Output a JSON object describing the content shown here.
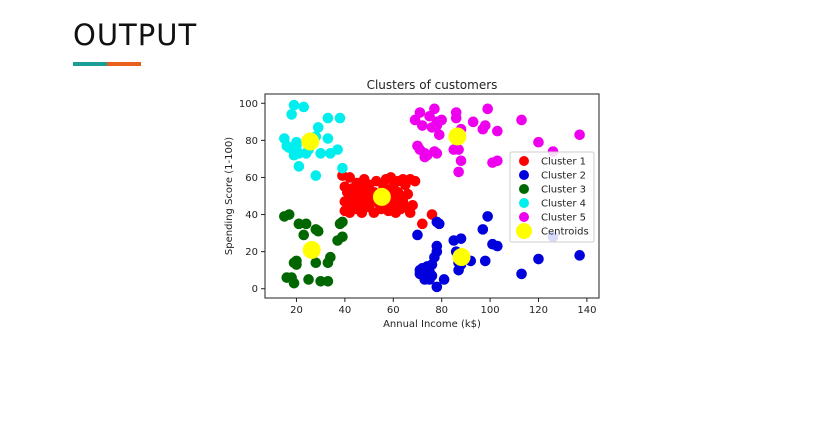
{
  "slide": {
    "title": "OUTPUT",
    "accent_colors": [
      "#1a9e96",
      "#e8601c"
    ]
  },
  "chart_data": {
    "type": "scatter",
    "title": "Clusters of customers",
    "xlabel": "Annual Income (k$)",
    "ylabel": "Spending Score (1-100)",
    "xlim": [
      7,
      145
    ],
    "ylim": [
      -5,
      105
    ],
    "xticks": [
      20,
      40,
      60,
      80,
      100,
      120,
      140
    ],
    "yticks": [
      0,
      20,
      40,
      60,
      80,
      100
    ],
    "grid": false,
    "legend_position": "right",
    "series": [
      {
        "name": "Cluster 1",
        "color": "#ff0000",
        "points": [
          [
            39,
            61
          ],
          [
            40,
            55
          ],
          [
            40,
            47
          ],
          [
            40,
            42
          ],
          [
            41,
            52
          ],
          [
            42,
            60
          ],
          [
            42,
            49
          ],
          [
            42,
            41
          ],
          [
            43,
            54
          ],
          [
            43,
            45
          ],
          [
            44,
            50
          ],
          [
            45,
            57
          ],
          [
            45,
            43
          ],
          [
            46,
            52
          ],
          [
            46,
            47
          ],
          [
            47,
            55
          ],
          [
            47,
            41
          ],
          [
            48,
            59
          ],
          [
            48,
            49
          ],
          [
            48,
            46
          ],
          [
            49,
            53
          ],
          [
            50,
            56
          ],
          [
            50,
            44
          ],
          [
            51,
            48
          ],
          [
            52,
            52
          ],
          [
            52,
            41
          ],
          [
            53,
            58
          ],
          [
            54,
            46
          ],
          [
            54,
            50
          ],
          [
            55,
            43
          ],
          [
            56,
            55
          ],
          [
            57,
            59
          ],
          [
            57,
            47
          ],
          [
            58,
            42
          ],
          [
            58,
            52
          ],
          [
            59,
            60
          ],
          [
            59,
            44
          ],
          [
            60,
            49
          ],
          [
            60,
            55
          ],
          [
            61,
            41
          ],
          [
            61,
            46
          ],
          [
            62,
            58
          ],
          [
            62,
            52
          ],
          [
            63,
            50
          ],
          [
            63,
            43
          ],
          [
            64,
            59
          ],
          [
            64,
            47
          ],
          [
            65,
            56
          ],
          [
            65,
            44
          ],
          [
            66,
            51
          ],
          [
            67,
            59
          ],
          [
            67,
            41
          ],
          [
            68,
            45
          ],
          [
            69,
            58
          ],
          [
            72,
            35
          ],
          [
            76,
            40
          ]
        ]
      },
      {
        "name": "Cluster 2",
        "color": "#0000dd",
        "points": [
          [
            70,
            29
          ],
          [
            71,
            10
          ],
          [
            71,
            8
          ],
          [
            72,
            11
          ],
          [
            73,
            5
          ],
          [
            74,
            12
          ],
          [
            75,
            9
          ],
          [
            75,
            5
          ],
          [
            76,
            7
          ],
          [
            76,
            13
          ],
          [
            77,
            17
          ],
          [
            78,
            1
          ],
          [
            78,
            20
          ],
          [
            78,
            23
          ],
          [
            78,
            36
          ],
          [
            79,
            35
          ],
          [
            81,
            5
          ],
          [
            85,
            26
          ],
          [
            86,
            20
          ],
          [
            87,
            14
          ],
          [
            87,
            10
          ],
          [
            88,
            13
          ],
          [
            88,
            27
          ],
          [
            92,
            15
          ],
          [
            97,
            32
          ],
          [
            98,
            15
          ],
          [
            99,
            39
          ],
          [
            101,
            24
          ],
          [
            103,
            23
          ],
          [
            113,
            8
          ],
          [
            120,
            16
          ],
          [
            126,
            28
          ],
          [
            137,
            18
          ]
        ]
      },
      {
        "name": "Cluster 3",
        "color": "#006600",
        "points": [
          [
            15,
            39
          ],
          [
            16,
            6
          ],
          [
            17,
            40
          ],
          [
            18,
            6
          ],
          [
            19,
            3
          ],
          [
            19,
            14
          ],
          [
            20,
            15
          ],
          [
            20,
            13
          ],
          [
            21,
            35
          ],
          [
            23,
            29
          ],
          [
            24,
            35
          ],
          [
            25,
            5
          ],
          [
            28,
            32
          ],
          [
            28,
            14
          ],
          [
            29,
            31
          ],
          [
            30,
            4
          ],
          [
            33,
            4
          ],
          [
            33,
            14
          ],
          [
            34,
            17
          ],
          [
            37,
            26
          ],
          [
            38,
            35
          ],
          [
            39,
            28
          ],
          [
            39,
            36
          ]
        ]
      },
      {
        "name": "Cluster 4",
        "color": "#00eeee",
        "points": [
          [
            15,
            81
          ],
          [
            16,
            77
          ],
          [
            17,
            76
          ],
          [
            18,
            94
          ],
          [
            19,
            99
          ],
          [
            19,
            72
          ],
          [
            20,
            77
          ],
          [
            20,
            79
          ],
          [
            21,
            73
          ],
          [
            21,
            66
          ],
          [
            23,
            98
          ],
          [
            24,
            73
          ],
          [
            25,
            75
          ],
          [
            28,
            82
          ],
          [
            28,
            61
          ],
          [
            29,
            87
          ],
          [
            30,
            73
          ],
          [
            33,
            81
          ],
          [
            33,
            92
          ],
          [
            34,
            73
          ],
          [
            37,
            75
          ],
          [
            38,
            92
          ],
          [
            39,
            65
          ]
        ]
      },
      {
        "name": "Cluster 5",
        "color": "#ee00ee",
        "points": [
          [
            69,
            91
          ],
          [
            70,
            77
          ],
          [
            71,
            95
          ],
          [
            71,
            75
          ],
          [
            72,
            88
          ],
          [
            73,
            73
          ],
          [
            73,
            71
          ],
          [
            74,
            72
          ],
          [
            75,
            93
          ],
          [
            76,
            87
          ],
          [
            77,
            97
          ],
          [
            77,
            74
          ],
          [
            78,
            88
          ],
          [
            78,
            73
          ],
          [
            78,
            90
          ],
          [
            79,
            83
          ],
          [
            80,
            91
          ],
          [
            85,
            75
          ],
          [
            86,
            95
          ],
          [
            86,
            92
          ],
          [
            87,
            63
          ],
          [
            87,
            75
          ],
          [
            88,
            86
          ],
          [
            88,
            69
          ],
          [
            93,
            90
          ],
          [
            97,
            86
          ],
          [
            98,
            88
          ],
          [
            99,
            97
          ],
          [
            101,
            68
          ],
          [
            103,
            85
          ],
          [
            103,
            69
          ],
          [
            113,
            91
          ],
          [
            120,
            79
          ],
          [
            126,
            74
          ],
          [
            137,
            83
          ]
        ]
      },
      {
        "name": "Centroids",
        "color": "#ffff00",
        "points": [
          [
            55.3,
            49.5
          ],
          [
            86.5,
            82.1
          ],
          [
            88.2,
            17.1
          ],
          [
            26.3,
            20.9
          ],
          [
            25.7,
            79.4
          ]
        ]
      }
    ]
  }
}
